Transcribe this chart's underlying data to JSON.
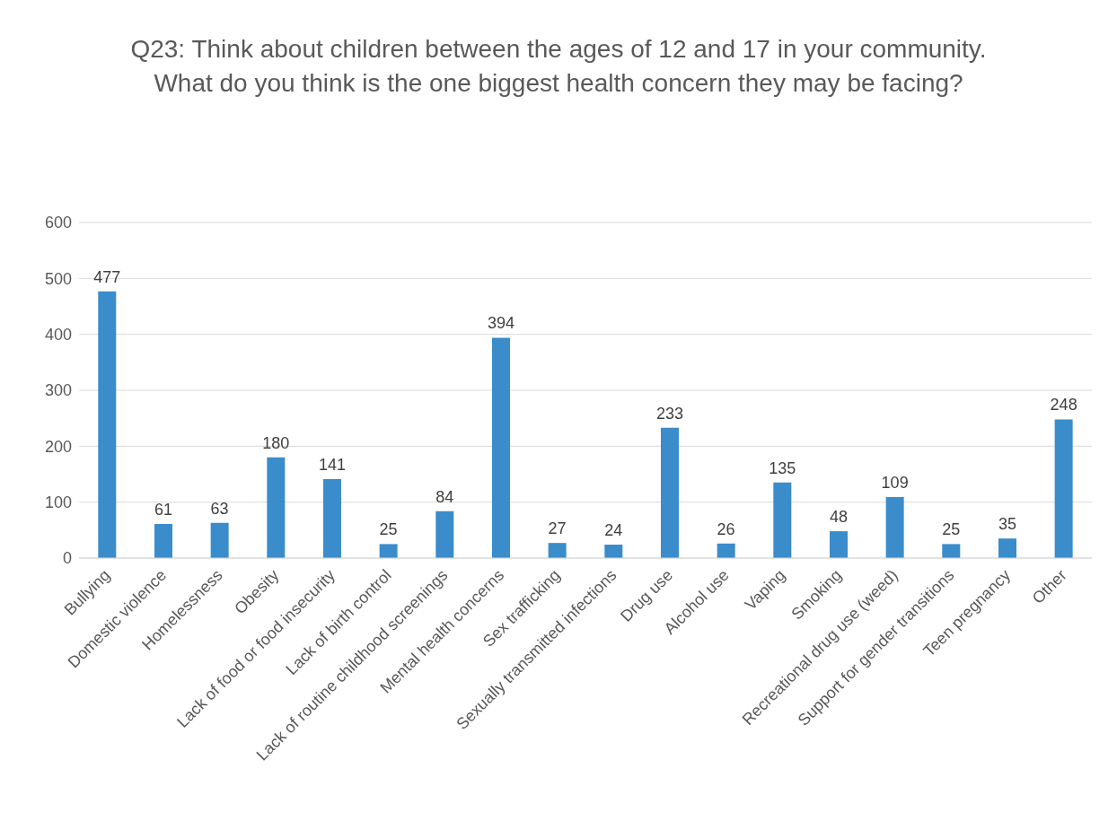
{
  "chart_data": {
    "type": "bar",
    "title": "Q23: Think about children between the ages of 12 and 17 in your community. What do you think is the one biggest health concern they may be facing?",
    "categories": [
      "Bullying",
      "Domestic violence",
      "Homelessness",
      "Obesity",
      "Lack of food or food insecurity",
      "Lack of birth control",
      "Lack of routine childhood screenings",
      "Mental health concerns",
      "Sex trafficking",
      "Sexually transmitted infections",
      "Drug use",
      "Alcohol use",
      "Vaping",
      "Smoking",
      "Recreational drug use (weed)",
      "Support for gender transitions",
      "Teen pregnancy",
      "Other"
    ],
    "values": [
      477,
      61,
      63,
      180,
      141,
      25,
      84,
      394,
      27,
      24,
      233,
      26,
      135,
      48,
      109,
      25,
      35,
      248
    ],
    "color": "#3a8ccb",
    "ylim": [
      0,
      600
    ],
    "yticks": [
      0,
      100,
      200,
      300,
      400,
      500,
      600
    ],
    "grid": "y",
    "data_labels": true
  }
}
